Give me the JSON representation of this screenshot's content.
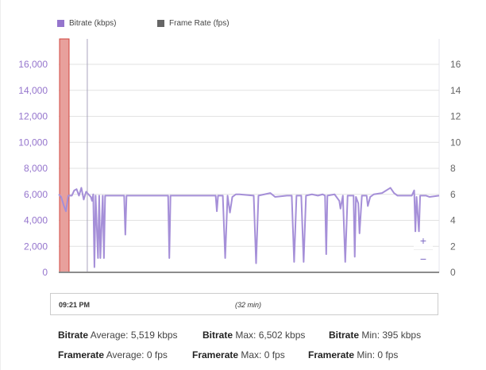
{
  "chart_data": {
    "type": "line",
    "legend": [
      {
        "name": "Bitrate (kbps)",
        "color": "#9575cd"
      },
      {
        "name": "Frame Rate (fps)",
        "color": "#666666"
      }
    ],
    "legend_position": "top-left",
    "y_left": {
      "ticks": [
        "0",
        "2,000",
        "4,000",
        "6,000",
        "8,000",
        "10,000",
        "12,000",
        "14,000",
        "16,000"
      ],
      "range": [
        0,
        16000
      ],
      "color": "#9575cd"
    },
    "y_right": {
      "ticks": [
        "0",
        "2",
        "4",
        "6",
        "8",
        "10",
        "12",
        "14",
        "16"
      ],
      "range": [
        0,
        16
      ],
      "color": "#666666"
    },
    "x_range_minutes": [
      0,
      32
    ],
    "grid": true,
    "highlight_band_minutes": [
      0,
      0.8
    ],
    "marker_line_minute": 2.4,
    "series": [
      {
        "name": "Bitrate (kbps)",
        "color": "#a58fd8",
        "points": [
          [
            0,
            6000
          ],
          [
            0.2,
            5800
          ],
          [
            0.4,
            5200
          ],
          [
            0.6,
            4700
          ],
          [
            0.8,
            5900
          ],
          [
            1.1,
            5900
          ],
          [
            1.3,
            6300
          ],
          [
            1.5,
            6400
          ],
          [
            1.7,
            5900
          ],
          [
            1.9,
            6500
          ],
          [
            2.1,
            5600
          ],
          [
            2.3,
            6200
          ],
          [
            2.5,
            6000
          ],
          [
            2.7,
            5800
          ],
          [
            2.8,
            5500
          ],
          [
            2.9,
            6000
          ],
          [
            3.0,
            400
          ],
          [
            3.1,
            5900
          ],
          [
            3.3,
            1100
          ],
          [
            3.4,
            5900
          ],
          [
            3.5,
            1100
          ],
          [
            3.7,
            5900
          ],
          [
            3.8,
            1100
          ],
          [
            3.9,
            5900
          ],
          [
            5.5,
            5900
          ],
          [
            5.6,
            2900
          ],
          [
            5.7,
            5900
          ],
          [
            9.2,
            5900
          ],
          [
            9.3,
            1100
          ],
          [
            9.4,
            5900
          ],
          [
            13.2,
            5900
          ],
          [
            13.3,
            4700
          ],
          [
            13.4,
            5900
          ],
          [
            13.8,
            5900
          ],
          [
            14.0,
            1100
          ],
          [
            14.2,
            5900
          ],
          [
            14.4,
            4600
          ],
          [
            14.6,
            5800
          ],
          [
            14.9,
            6000
          ],
          [
            15.2,
            6000
          ],
          [
            16.4,
            5900
          ],
          [
            16.6,
            700
          ],
          [
            16.8,
            5900
          ],
          [
            17.8,
            6100
          ],
          [
            18.2,
            5800
          ],
          [
            19.2,
            5900
          ],
          [
            19.6,
            5900
          ],
          [
            19.8,
            800
          ],
          [
            20.0,
            5900
          ],
          [
            20.4,
            5900
          ],
          [
            20.6,
            800
          ],
          [
            20.8,
            5900
          ],
          [
            21.3,
            6000
          ],
          [
            21.8,
            5900
          ],
          [
            22.2,
            6000
          ],
          [
            22.4,
            5900
          ],
          [
            22.5,
            1400
          ],
          [
            22.6,
            5900
          ],
          [
            23.2,
            6000
          ],
          [
            23.6,
            5500
          ],
          [
            23.7,
            4900
          ],
          [
            23.9,
            5900
          ],
          [
            24.1,
            800
          ],
          [
            24.3,
            5900
          ],
          [
            24.8,
            5900
          ],
          [
            24.9,
            1200
          ],
          [
            25.0,
            5800
          ],
          [
            25.2,
            5300
          ],
          [
            25.3,
            3000
          ],
          [
            25.5,
            5900
          ],
          [
            25.9,
            5900
          ],
          [
            26.0,
            5100
          ],
          [
            26.2,
            5800
          ],
          [
            26.5,
            6000
          ],
          [
            27.2,
            6100
          ],
          [
            27.9,
            6500
          ],
          [
            28.2,
            6100
          ],
          [
            28.5,
            5900
          ],
          [
            29.2,
            5900
          ],
          [
            29.7,
            5900
          ],
          [
            29.9,
            6300
          ],
          [
            30.0,
            3100
          ],
          [
            30.1,
            5800
          ],
          [
            30.3,
            3100
          ],
          [
            30.4,
            5900
          ],
          [
            30.9,
            5900
          ],
          [
            31.2,
            5800
          ],
          [
            32.0,
            5900
          ]
        ]
      },
      {
        "name": "Frame Rate (fps)",
        "color": "#666666",
        "points": [
          [
            0,
            0
          ],
          [
            32,
            0
          ]
        ]
      }
    ]
  },
  "range_selector": {
    "start": "09:21 PM",
    "duration": "(32 min)"
  },
  "zoom": {
    "in": "+",
    "out": "−"
  },
  "stats": {
    "bitrate_label": "Bitrate",
    "bitrate_avg": "Average: 5,519 kbps",
    "bitrate_max": "Max: 6,502 kbps",
    "bitrate_min": "Min: 395 kbps",
    "framerate_label": "Framerate",
    "framerate_avg": "Average: 0 fps",
    "framerate_max": "Max: 0 fps",
    "framerate_min": "Min: 0 fps"
  }
}
